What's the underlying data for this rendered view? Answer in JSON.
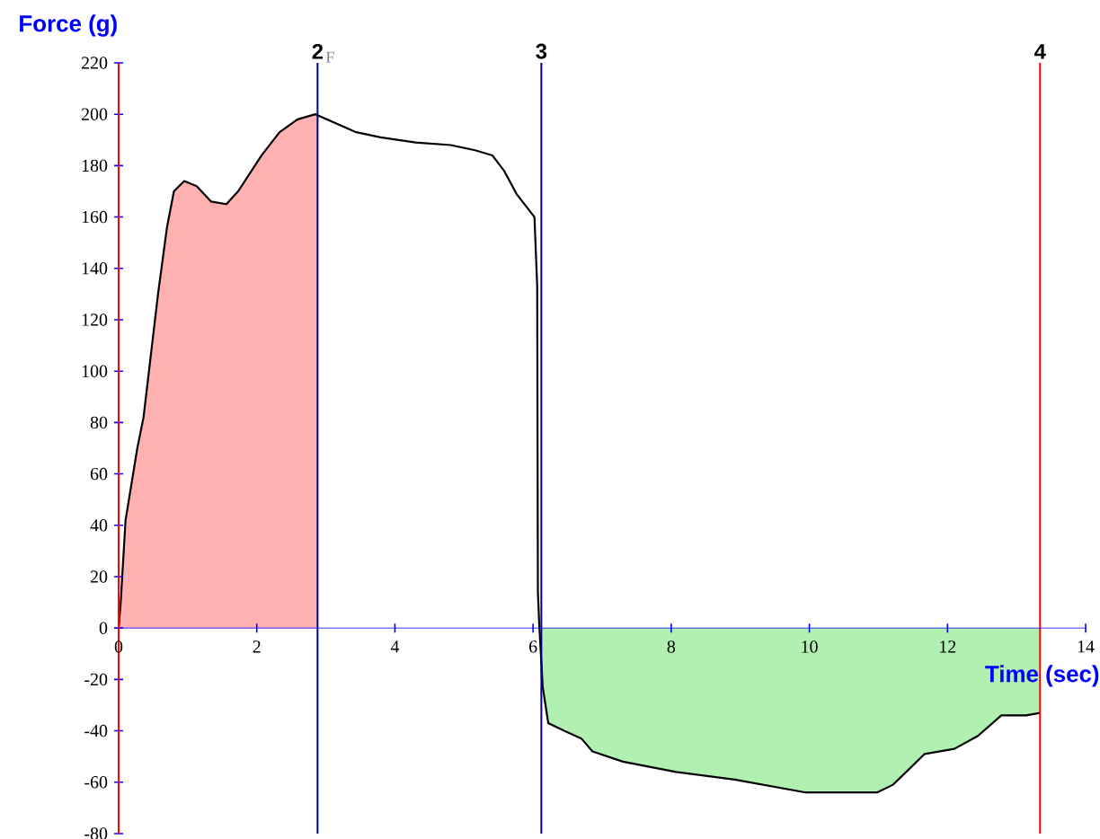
{
  "chart_data": {
    "type": "line",
    "xlabel": "Time (sec)",
    "ylabel": "Force (g)",
    "x": [
      0,
      0.03,
      0.1,
      0.27,
      0.36,
      0.57,
      0.7,
      0.8,
      0.95,
      1.13,
      1.34,
      1.56,
      1.73,
      2.07,
      2.33,
      2.59,
      2.85,
      3.1,
      3.44,
      3.79,
      4.3,
      4.81,
      5.16,
      5.41,
      5.58,
      5.76,
      6.02,
      6.06,
      6.07,
      6.09,
      6.14,
      6.22,
      6.45,
      6.7,
      6.86,
      7.3,
      8.07,
      8.92,
      9.95,
      10.98,
      11.21,
      11.67,
      12.1,
      12.44,
      12.78,
      13.14,
      13.34
    ],
    "series": [
      {
        "type": "area",
        "color": "#ffb0b0",
        "x": [
          0,
          0.03,
          0.1,
          0.27,
          0.36,
          0.57,
          0.7,
          0.8,
          0.95,
          1.13,
          1.34,
          1.56,
          1.73,
          2.07,
          2.33,
          2.59,
          2.85,
          2.88
        ],
        "values": [
          0,
          10,
          42,
          70,
          82,
          130,
          156,
          170,
          174,
          172,
          166,
          165,
          170,
          184,
          193,
          198,
          200,
          200
        ]
      },
      {
        "type": "area",
        "color": "#b0f0b0",
        "x": [
          6.12,
          6.14,
          6.22,
          6.45,
          6.7,
          6.86,
          7.3,
          8.07,
          8.92,
          9.95,
          10.98,
          11.21,
          11.67,
          12.1,
          12.44,
          12.78,
          13.14,
          13.34
        ],
        "values": [
          -15,
          -23,
          -37,
          -40,
          -43,
          -48,
          -52,
          -56,
          -59,
          -64,
          -64,
          -61,
          -49,
          -47,
          -42,
          -34,
          -34,
          -33
        ]
      },
      {
        "color": "#000000",
        "values": [
          0,
          10,
          42,
          70,
          82,
          130,
          156,
          170,
          174,
          172,
          166,
          165,
          170,
          184,
          193,
          198,
          200,
          197,
          193,
          191,
          189,
          188,
          186,
          184,
          178,
          169,
          160,
          133,
          14,
          1,
          -23,
          -37,
          -40,
          -43,
          -48,
          -52,
          -56,
          -59,
          -64,
          -64,
          -61,
          -49,
          -47,
          -42,
          -34,
          -34,
          -33
        ]
      }
    ],
    "xlim": [
      0,
      14
    ],
    "ylim": [
      -80,
      220
    ],
    "xticks": [
      0,
      2,
      4,
      6,
      8,
      10,
      12,
      14
    ],
    "yticks": [
      -80,
      -60,
      -40,
      -20,
      0,
      20,
      40,
      60,
      80,
      100,
      120,
      140,
      160,
      180,
      200,
      220
    ],
    "marker": "none",
    "line_style": "solid",
    "ref_lines": [
      {
        "axis": "x",
        "value": 2.88,
        "color": "#000080"
      },
      {
        "axis": "x",
        "value": 6.12,
        "color": "#000080"
      },
      {
        "axis": "x",
        "value": 13.34,
        "color": "#ff0000"
      }
    ],
    "annotations": [
      {
        "text": "2",
        "x": 2.88,
        "y": 220
      },
      {
        "text": "3",
        "x": 6.12,
        "y": 220
      },
      {
        "text": "4",
        "x": 13.34,
        "y": 220
      },
      "F"
    ]
  }
}
